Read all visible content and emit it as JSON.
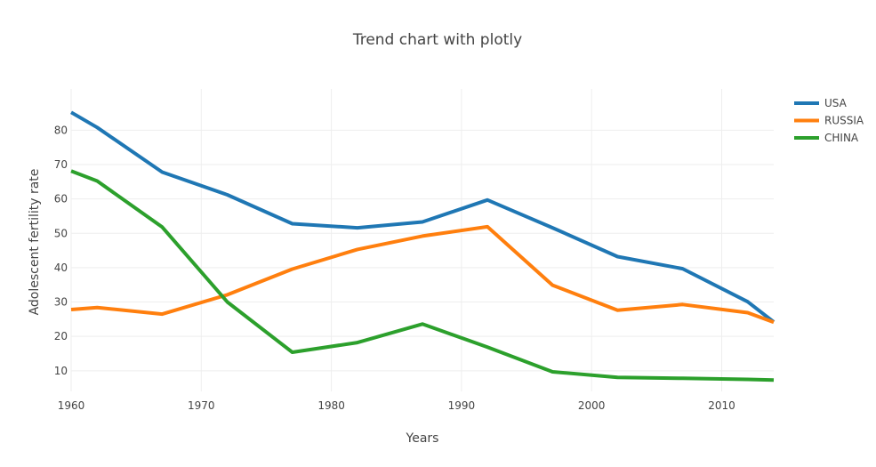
{
  "chart_data": {
    "type": "line",
    "title": "Trend chart with plotly",
    "xlabel": "Years",
    "ylabel": "Adolescent fertility rate",
    "xlim": [
      1960,
      2014
    ],
    "ylim": [
      4,
      92
    ],
    "xticks": [
      1960,
      1970,
      1980,
      1990,
      2000,
      2010
    ],
    "yticks": [
      10,
      20,
      30,
      40,
      50,
      60,
      70,
      80
    ],
    "grid": true,
    "legend_position": "top-right",
    "series": [
      {
        "name": "USA",
        "color": "#1f77b4",
        "x": [
          1960,
          1962,
          1967,
          1972,
          1977,
          1982,
          1987,
          1992,
          1997,
          2002,
          2007,
          2012,
          2014
        ],
        "y": [
          85.2,
          80.8,
          67.8,
          61.2,
          52.8,
          51.6,
          53.3,
          59.7,
          51.6,
          43.2,
          39.7,
          30.1,
          24.2
        ]
      },
      {
        "name": "RUSSIA",
        "color": "#ff7f0e",
        "x": [
          1960,
          1962,
          1967,
          1972,
          1977,
          1982,
          1987,
          1992,
          1997,
          2002,
          2007,
          2012,
          2014
        ],
        "y": [
          27.8,
          28.4,
          26.5,
          32.1,
          39.6,
          45.3,
          49.2,
          51.9,
          34.9,
          27.6,
          29.3,
          26.9,
          24.1
        ]
      },
      {
        "name": "CHINA",
        "color": "#2ca02c",
        "x": [
          1960,
          1962,
          1967,
          1972,
          1977,
          1982,
          1987,
          1992,
          1997,
          2002,
          2007,
          2012,
          2014
        ],
        "y": [
          68.1,
          65.2,
          51.8,
          30.0,
          15.4,
          18.2,
          23.6,
          16.9,
          9.7,
          8.1,
          7.8,
          7.5,
          7.3
        ]
      }
    ]
  }
}
